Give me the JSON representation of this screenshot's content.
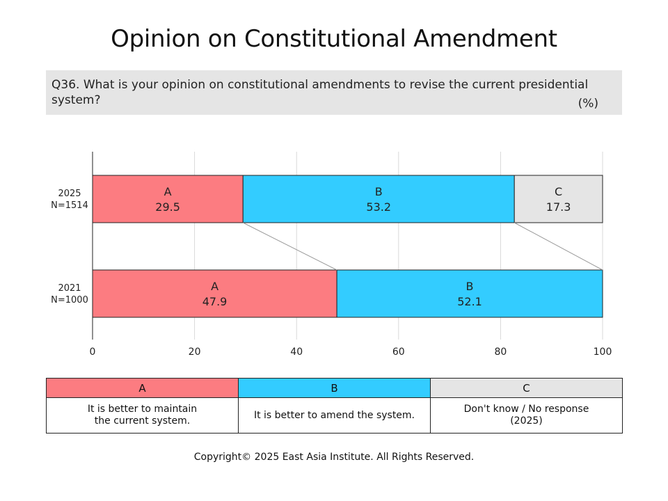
{
  "title": "Opinion on Constitutional Amendment",
  "question": "Q36. What is your opinion on constitutional amendments to revise the current presidential system?",
  "unit": "(%)",
  "chart_data": {
    "type": "bar",
    "orientation": "horizontal",
    "stacked": true,
    "categories": [
      {
        "label": "2025",
        "n": "N=1514"
      },
      {
        "label": "2021",
        "n": "N=1000"
      }
    ],
    "series": [
      {
        "name": "A",
        "color": "#fc7c81",
        "values": [
          29.5,
          47.9
        ]
      },
      {
        "name": "B",
        "color": "#33ccff",
        "values": [
          53.2,
          52.1
        ]
      },
      {
        "name": "C",
        "color": "#e5e5e5",
        "values": [
          17.3,
          null
        ]
      }
    ],
    "xlim": [
      0,
      100
    ],
    "xticks": [
      "0",
      "20",
      "40",
      "60",
      "80",
      "100"
    ],
    "grid": true
  },
  "legend": {
    "headers": [
      {
        "key": "A",
        "color": "#fc7c81"
      },
      {
        "key": "B",
        "color": "#33ccff"
      },
      {
        "key": "C",
        "color": "#e5e5e5"
      }
    ],
    "descriptions": [
      [
        "It is better to maintain",
        "the current system."
      ],
      [
        "It is better to amend the system."
      ],
      [
        "Don't know / No response",
        "(2025)"
      ]
    ]
  },
  "copyright": "Copyright© 2025 East Asia Institute. All Rights Reserved."
}
